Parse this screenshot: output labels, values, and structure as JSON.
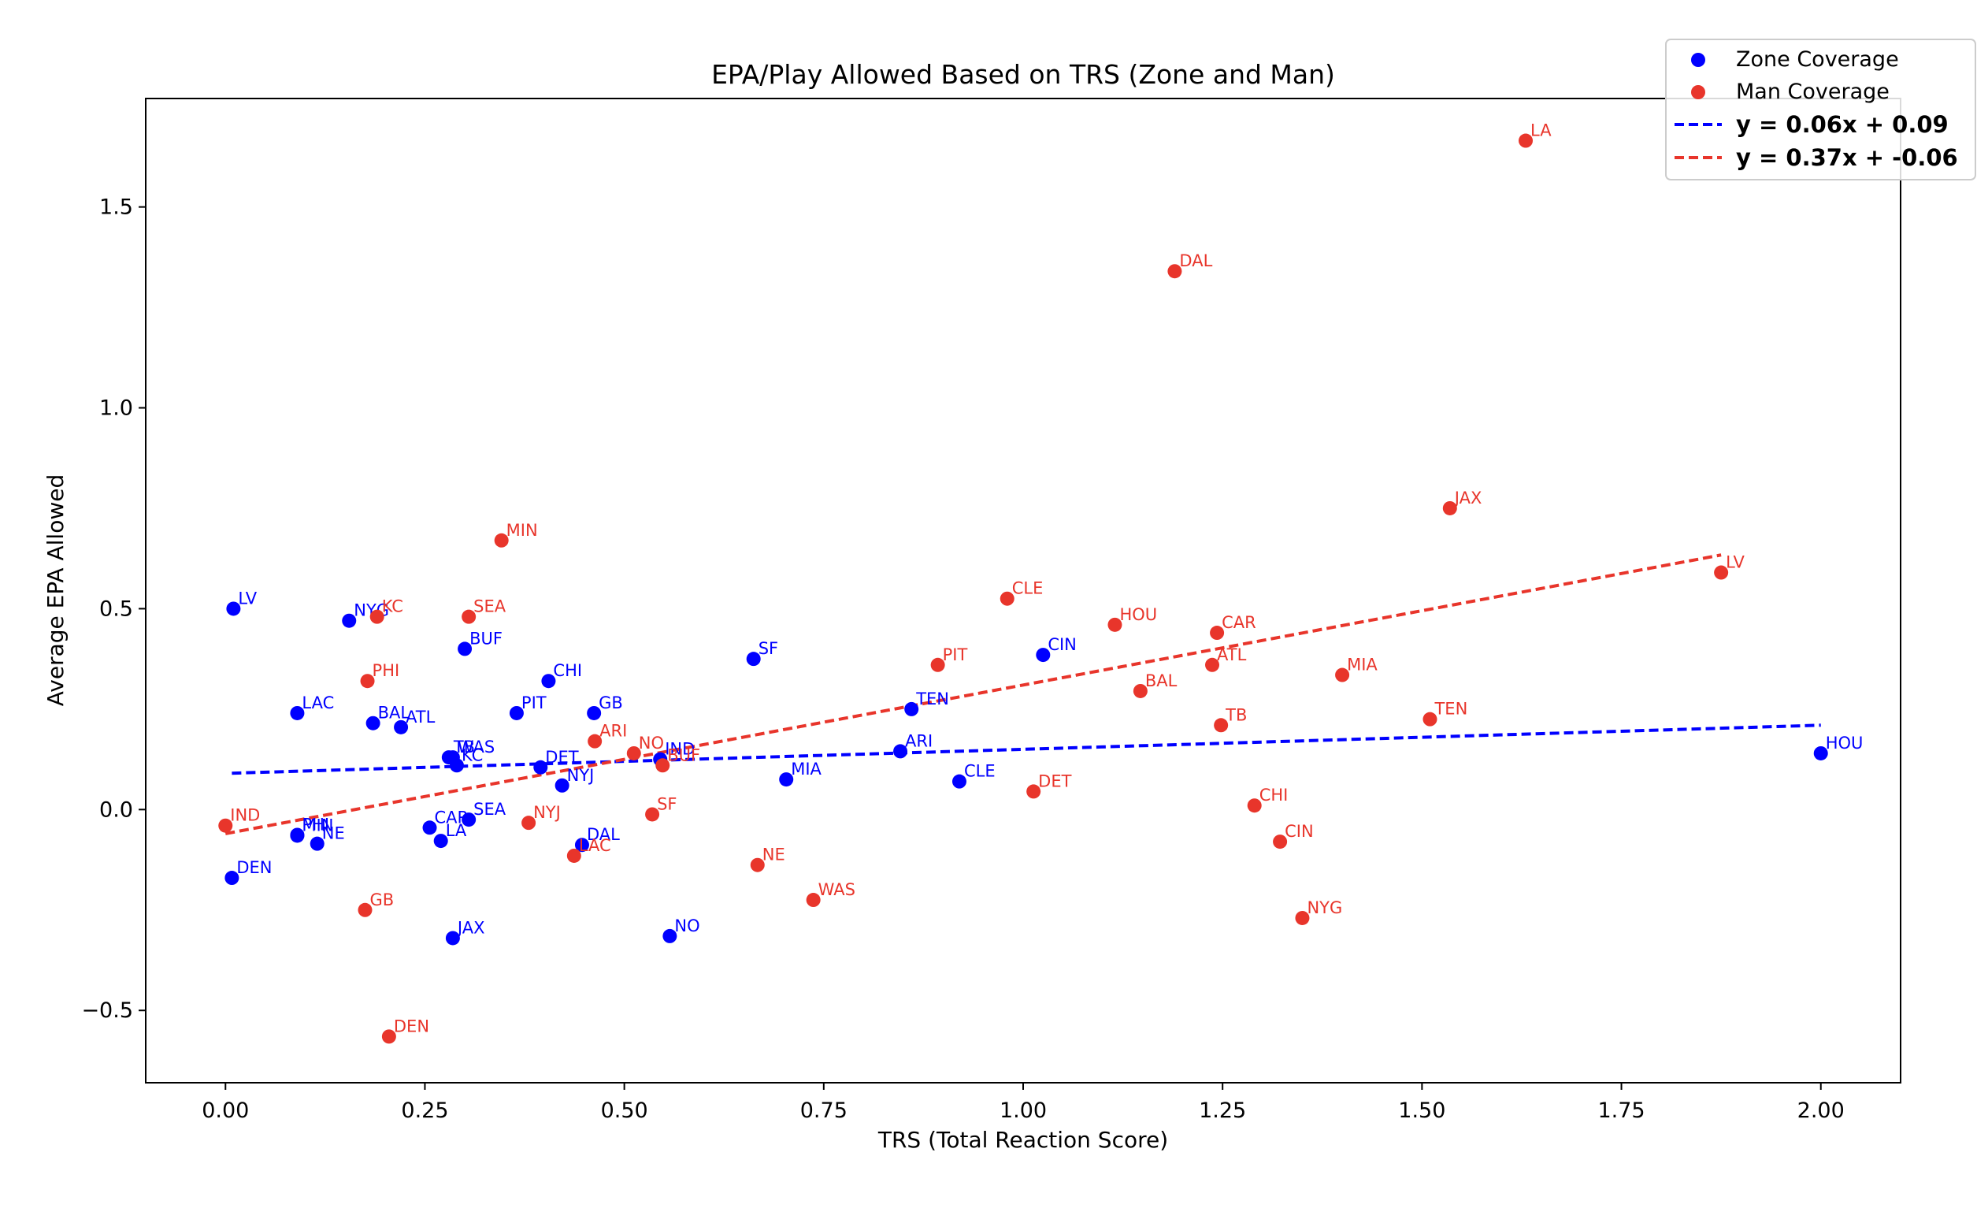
{
  "chart_data": {
    "type": "scatter",
    "title": "EPA/Play Allowed Based on TRS (Zone and Man)",
    "xlabel": "TRS (Total Reaction Score)",
    "ylabel": "Average EPA Allowed",
    "xlim": [
      -0.1,
      2.1
    ],
    "ylim": [
      -0.68,
      1.77
    ],
    "xticks": [
      0.0,
      0.25,
      0.5,
      0.75,
      1.0,
      1.25,
      1.5,
      1.75,
      2.0
    ],
    "xtick_labels": [
      "0.00",
      "0.25",
      "0.50",
      "0.75",
      "1.00",
      "1.25",
      "1.50",
      "1.75",
      "2.00"
    ],
    "yticks": [
      -0.5,
      0.0,
      0.5,
      1.0,
      1.5
    ],
    "ytick_labels": [
      "−0.5",
      "0.0",
      "0.5",
      "1.0",
      "1.5"
    ],
    "grid": false,
    "legend_placement": "top-right",
    "series": [
      {
        "name": "Zone Coverage",
        "color": "#0000ff",
        "points": [
          {
            "label": "LV",
            "x": 0.01,
            "y": 0.5
          },
          {
            "label": "NYG",
            "x": 0.155,
            "y": 0.47
          },
          {
            "label": "BUF",
            "x": 0.3,
            "y": 0.4
          },
          {
            "label": "CHI",
            "x": 0.405,
            "y": 0.32
          },
          {
            "label": "LAC",
            "x": 0.09,
            "y": 0.24
          },
          {
            "label": "BAL",
            "x": 0.185,
            "y": 0.215
          },
          {
            "label": "ATL",
            "x": 0.22,
            "y": 0.205
          },
          {
            "label": "PIT",
            "x": 0.365,
            "y": 0.24
          },
          {
            "label": "GB",
            "x": 0.462,
            "y": 0.24
          },
          {
            "label": "SF",
            "x": 0.662,
            "y": 0.375
          },
          {
            "label": "TB",
            "x": 0.28,
            "y": 0.13
          },
          {
            "label": "WAS",
            "x": 0.285,
            "y": 0.13
          },
          {
            "label": "KC",
            "x": 0.29,
            "y": 0.11
          },
          {
            "label": "DET",
            "x": 0.395,
            "y": 0.105
          },
          {
            "label": "NYJ",
            "x": 0.422,
            "y": 0.06
          },
          {
            "label": "IND",
            "x": 0.545,
            "y": 0.125
          },
          {
            "label": "MIA",
            "x": 0.703,
            "y": 0.075
          },
          {
            "label": "ARI",
            "x": 0.846,
            "y": 0.145
          },
          {
            "label": "TEN",
            "x": 0.86,
            "y": 0.25
          },
          {
            "label": "CLE",
            "x": 0.92,
            "y": 0.07
          },
          {
            "label": "CIN",
            "x": 1.025,
            "y": 0.385
          },
          {
            "label": "HOU",
            "x": 2.0,
            "y": 0.14
          },
          {
            "label": "CAR",
            "x": 0.256,
            "y": -0.045
          },
          {
            "label": "SEA",
            "x": 0.305,
            "y": -0.025
          },
          {
            "label": "LA",
            "x": 0.27,
            "y": -0.078
          },
          {
            "label": "PHI",
            "x": 0.09,
            "y": -0.063
          },
          {
            "label": "MIN",
            "x": 0.09,
            "y": -0.065
          },
          {
            "label": "NE",
            "x": 0.115,
            "y": -0.085
          },
          {
            "label": "DEN",
            "x": 0.008,
            "y": -0.17
          },
          {
            "label": "JAX",
            "x": 0.285,
            "y": -0.32
          },
          {
            "label": "DAL",
            "x": 0.447,
            "y": -0.088
          },
          {
            "label": "NO",
            "x": 0.557,
            "y": -0.315
          }
        ]
      },
      {
        "name": "Man Coverage",
        "color": "#e8352b",
        "points": [
          {
            "label": "LA",
            "x": 1.63,
            "y": 1.665
          },
          {
            "label": "DAL",
            "x": 1.19,
            "y": 1.34
          },
          {
            "label": "JAX",
            "x": 1.535,
            "y": 0.75
          },
          {
            "label": "LV",
            "x": 1.875,
            "y": 0.59
          },
          {
            "label": "MIN",
            "x": 0.346,
            "y": 0.67
          },
          {
            "label": "KC",
            "x": 0.19,
            "y": 0.48
          },
          {
            "label": "SEA",
            "x": 0.305,
            "y": 0.48
          },
          {
            "label": "PHI",
            "x": 0.178,
            "y": 0.32
          },
          {
            "label": "CLE",
            "x": 0.98,
            "y": 0.525
          },
          {
            "label": "HOU",
            "x": 1.115,
            "y": 0.46
          },
          {
            "label": "CAR",
            "x": 1.243,
            "y": 0.44
          },
          {
            "label": "PIT",
            "x": 0.893,
            "y": 0.36
          },
          {
            "label": "ATL",
            "x": 1.237,
            "y": 0.36
          },
          {
            "label": "MIA",
            "x": 1.4,
            "y": 0.335
          },
          {
            "label": "BAL",
            "x": 1.147,
            "y": 0.295
          },
          {
            "label": "TB",
            "x": 1.248,
            "y": 0.21
          },
          {
            "label": "TEN",
            "x": 1.51,
            "y": 0.225
          },
          {
            "label": "ARI",
            "x": 0.463,
            "y": 0.17
          },
          {
            "label": "NO",
            "x": 0.512,
            "y": 0.14
          },
          {
            "label": "BUF",
            "x": 0.548,
            "y": 0.11
          },
          {
            "label": "DET",
            "x": 1.013,
            "y": 0.045
          },
          {
            "label": "CHI",
            "x": 1.29,
            "y": 0.01
          },
          {
            "label": "SF",
            "x": 0.535,
            "y": -0.012
          },
          {
            "label": "NYJ",
            "x": 0.38,
            "y": -0.033
          },
          {
            "label": "IND",
            "x": 0.0,
            "y": -0.04
          },
          {
            "label": "CIN",
            "x": 1.322,
            "y": -0.08
          },
          {
            "label": "LAC",
            "x": 0.437,
            "y": -0.115
          },
          {
            "label": "NE",
            "x": 0.667,
            "y": -0.138
          },
          {
            "label": "WAS",
            "x": 0.737,
            "y": -0.225
          },
          {
            "label": "GB",
            "x": 0.175,
            "y": -0.25
          },
          {
            "label": "NYG",
            "x": 1.35,
            "y": -0.27
          },
          {
            "label": "DEN",
            "x": 0.205,
            "y": -0.565
          }
        ]
      }
    ],
    "fit_lines": [
      {
        "label": "y = 0.06x + 0.09",
        "slope": 0.06,
        "intercept": 0.09,
        "x_range": [
          0.008,
          2.0
        ],
        "color": "#0000ff"
      },
      {
        "label": "y = 0.37x + -0.06",
        "slope": 0.37,
        "intercept": -0.06,
        "x_range": [
          0.0,
          1.875
        ],
        "color": "#e8352b"
      }
    ]
  }
}
